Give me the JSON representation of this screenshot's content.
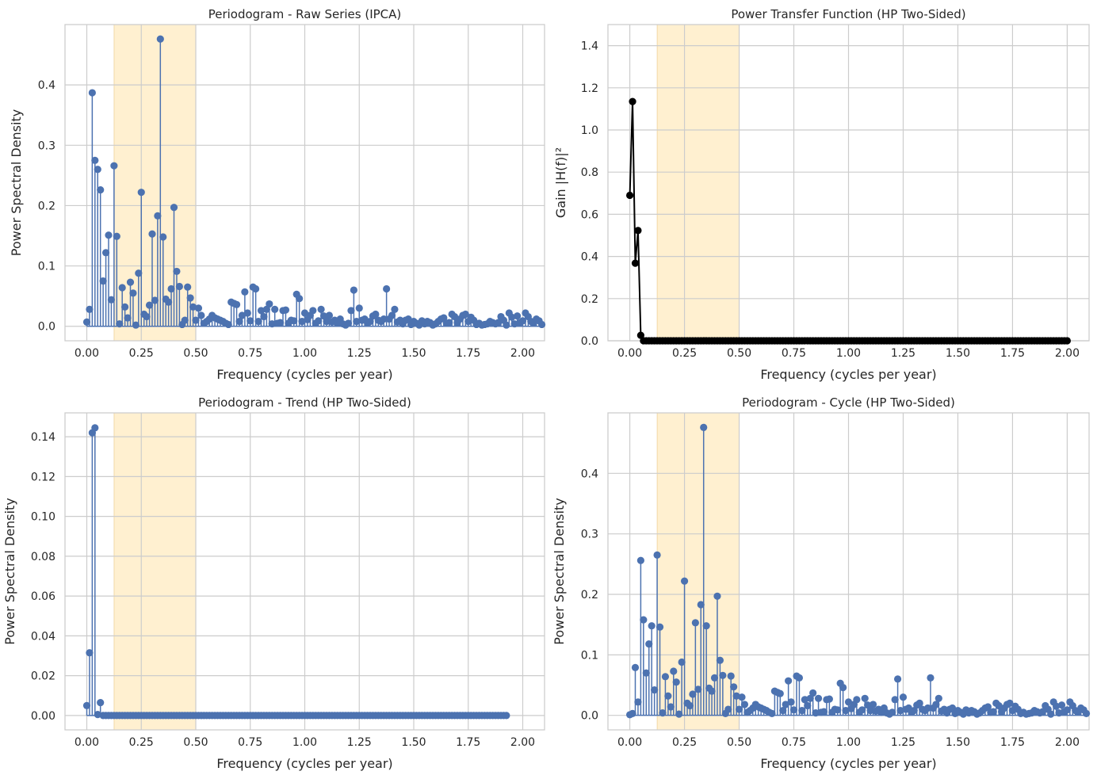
{
  "chart_data": [
    {
      "id": "raw",
      "type": "stem",
      "title": "Periodogram - Raw Series (IPCA)",
      "xlabel": "Frequency (cycles per year)",
      "ylabel": "Power Spectral Density",
      "xlim": [
        -0.1,
        2.1
      ],
      "ylim": [
        -0.024,
        0.5
      ],
      "xticks": [
        0.0,
        0.25,
        0.5,
        0.75,
        1.0,
        1.25,
        1.5,
        1.75,
        2.0
      ],
      "xtick_labels": [
        "0.00",
        "0.25",
        "0.50",
        "0.75",
        "1.00",
        "1.25",
        "1.50",
        "1.75",
        "2.00"
      ],
      "yticks": [
        0.0,
        0.1,
        0.2,
        0.3,
        0.4
      ],
      "ytick_labels": [
        "0.0",
        "0.1",
        "0.2",
        "0.3",
        "0.4"
      ],
      "band": [
        0.125,
        0.5
      ],
      "color": "#4c72b0",
      "x_step": 0.0125,
      "values": [
        0.007,
        0.028,
        0.387,
        0.275,
        0.26,
        0.226,
        0.075,
        0.122,
        0.151,
        0.044,
        0.266,
        0.149,
        0.004,
        0.064,
        0.032,
        0.014,
        0.073,
        0.055,
        0.002,
        0.088,
        0.222,
        0.02,
        0.016,
        0.035,
        0.153,
        0.043,
        0.183,
        0.476,
        0.148,
        0.045,
        0.04,
        0.062,
        0.197,
        0.091,
        0.066,
        0.003,
        0.01,
        0.065,
        0.047,
        0.032,
        0.01,
        0.03,
        0.018,
        0.005,
        0.008,
        0.012,
        0.018,
        0.014,
        0.012,
        0.01,
        0.008,
        0.005,
        0.003,
        0.04,
        0.038,
        0.036,
        0.008,
        0.018,
        0.057,
        0.022,
        0.009,
        0.065,
        0.062,
        0.008,
        0.026,
        0.016,
        0.028,
        0.037,
        0.004,
        0.028,
        0.005,
        0.006,
        0.026,
        0.027,
        0.005,
        0.01,
        0.009,
        0.053,
        0.046,
        0.008,
        0.022,
        0.011,
        0.018,
        0.026,
        0.005,
        0.009,
        0.028,
        0.017,
        0.008,
        0.018,
        0.007,
        0.01,
        0.005,
        0.012,
        0.004,
        0.002,
        0.005,
        0.026,
        0.06,
        0.008,
        0.03,
        0.01,
        0.012,
        0.006,
        0.008,
        0.017,
        0.02,
        0.01,
        0.008,
        0.012,
        0.062,
        0.012,
        0.018,
        0.028,
        0.007,
        0.01,
        0.004,
        0.01,
        0.012,
        0.003,
        0.008,
        0.005,
        0.002,
        0.009,
        0.004,
        0.008,
        0.006,
        0.002,
        0.004,
        0.008,
        0.012,
        0.014,
        0.005,
        0.006,
        0.02,
        0.016,
        0.006,
        0.012,
        0.018,
        0.02,
        0.008,
        0.015,
        0.01,
        0.003,
        0.005,
        0.002,
        0.003,
        0.004,
        0.008,
        0.006,
        0.004,
        0.006,
        0.016,
        0.01,
        0.002,
        0.022,
        0.015,
        0.004,
        0.017,
        0.006,
        0.009,
        0.022,
        0.016,
        0.008,
        0.006,
        0.012,
        0.009,
        0.003
      ]
    },
    {
      "id": "gain",
      "type": "line",
      "title": "Power Transfer Function (HP Two-Sided)",
      "xlabel": "Frequency (cycles per year)",
      "ylabel": "Gain |H(f)|²",
      "xlim": [
        -0.1,
        2.1
      ],
      "ylim": [
        0,
        1.5
      ],
      "xticks": [
        0.0,
        0.25,
        0.5,
        0.75,
        1.0,
        1.25,
        1.5,
        1.75,
        2.0
      ],
      "xtick_labels": [
        "0.00",
        "0.25",
        "0.50",
        "0.75",
        "1.00",
        "1.25",
        "1.50",
        "1.75",
        "2.00"
      ],
      "yticks": [
        0.0,
        0.2,
        0.4,
        0.6,
        0.8,
        1.0,
        1.2,
        1.4
      ],
      "ytick_labels": [
        "0.0",
        "0.2",
        "0.4",
        "0.6",
        "0.8",
        "1.0",
        "1.2",
        "1.4"
      ],
      "band": [
        0.125,
        0.5
      ],
      "color": "#000000",
      "x_step": 0.0125,
      "values": [
        0.69,
        1.135,
        0.368,
        0.523,
        0.026
      ]
    },
    {
      "id": "trend",
      "type": "stem",
      "title": "Periodogram - Trend (HP Two-Sided)",
      "xlabel": "Frequency (cycles per year)",
      "ylabel": "Power Spectral Density",
      "xlim": [
        -0.1,
        2.1
      ],
      "ylim": [
        -0.0072,
        0.152
      ],
      "xticks": [
        0.0,
        0.25,
        0.5,
        0.75,
        1.0,
        1.25,
        1.5,
        1.75,
        2.0
      ],
      "xtick_labels": [
        "0.00",
        "0.25",
        "0.50",
        "0.75",
        "1.00",
        "1.25",
        "1.50",
        "1.75",
        "2.00"
      ],
      "yticks": [
        0.0,
        0.02,
        0.04,
        0.06,
        0.08,
        0.1,
        0.12,
        0.14
      ],
      "ytick_labels": [
        "0.00",
        "0.02",
        "0.04",
        "0.06",
        "0.08",
        "0.10",
        "0.12",
        "0.14"
      ],
      "band": [
        0.125,
        0.5
      ],
      "color": "#4c72b0",
      "x_step": 0.0125,
      "values": [
        0.005,
        0.0315,
        0.142,
        0.1445,
        0.0005,
        0.0065
      ]
    },
    {
      "id": "cycle",
      "type": "stem",
      "title": "Periodogram - Cycle (HP Two-Sided)",
      "xlabel": "Frequency (cycles per year)",
      "ylabel": "Power Spectral Density",
      "xlim": [
        -0.1,
        2.1
      ],
      "ylim": [
        -0.024,
        0.5
      ],
      "xticks": [
        0.0,
        0.25,
        0.5,
        0.75,
        1.0,
        1.25,
        1.5,
        1.75,
        2.0
      ],
      "xtick_labels": [
        "0.00",
        "0.25",
        "0.50",
        "0.75",
        "1.00",
        "1.25",
        "1.50",
        "1.75",
        "2.00"
      ],
      "yticks": [
        0.0,
        0.1,
        0.2,
        0.3,
        0.4
      ],
      "ytick_labels": [
        "0.0",
        "0.1",
        "0.2",
        "0.3",
        "0.4"
      ],
      "band": [
        0.125,
        0.5
      ],
      "color": "#4c72b0",
      "x_step": 0.0125,
      "values": [
        0.001,
        0.003,
        0.079,
        0.022,
        0.256,
        0.158,
        0.07,
        0.118,
        0.148,
        0.042,
        0.265,
        0.146,
        0.004,
        0.064,
        0.032,
        0.014,
        0.073,
        0.055,
        0.002,
        0.088,
        0.222,
        0.02,
        0.016,
        0.035,
        0.153,
        0.043,
        0.183,
        0.476,
        0.148,
        0.045,
        0.04,
        0.062,
        0.197,
        0.091,
        0.066,
        0.003,
        0.01,
        0.065,
        0.047,
        0.032,
        0.01,
        0.03,
        0.018,
        0.005,
        0.008,
        0.012,
        0.018,
        0.014,
        0.012,
        0.01,
        0.008,
        0.005,
        0.003,
        0.04,
        0.038,
        0.036,
        0.008,
        0.018,
        0.057,
        0.022,
        0.009,
        0.065,
        0.062,
        0.008,
        0.026,
        0.016,
        0.028,
        0.037,
        0.004,
        0.028,
        0.005,
        0.006,
        0.026,
        0.027,
        0.005,
        0.01,
        0.009,
        0.053,
        0.046,
        0.008,
        0.022,
        0.011,
        0.018,
        0.026,
        0.005,
        0.009,
        0.028,
        0.017,
        0.008,
        0.018,
        0.007,
        0.01,
        0.005,
        0.012,
        0.004,
        0.002,
        0.005,
        0.026,
        0.06,
        0.008,
        0.03,
        0.01,
        0.012,
        0.006,
        0.008,
        0.017,
        0.02,
        0.01,
        0.008,
        0.012,
        0.062,
        0.012,
        0.018,
        0.028,
        0.007,
        0.01,
        0.004,
        0.01,
        0.012,
        0.003,
        0.008,
        0.005,
        0.002,
        0.009,
        0.004,
        0.008,
        0.006,
        0.002,
        0.004,
        0.008,
        0.012,
        0.014,
        0.005,
        0.006,
        0.02,
        0.016,
        0.006,
        0.012,
        0.018,
        0.02,
        0.008,
        0.015,
        0.01,
        0.003,
        0.005,
        0.002,
        0.003,
        0.004,
        0.008,
        0.006,
        0.004,
        0.006,
        0.016,
        0.01,
        0.002,
        0.022,
        0.015,
        0.004,
        0.017,
        0.006,
        0.009,
        0.022,
        0.016,
        0.008,
        0.006,
        0.012,
        0.009,
        0.003
      ]
    }
  ]
}
